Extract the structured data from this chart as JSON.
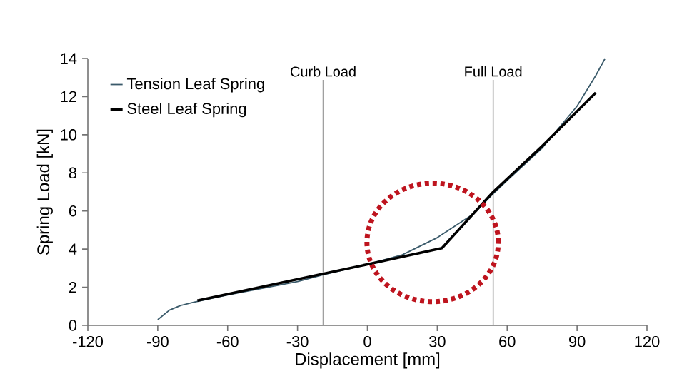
{
  "chart_data": {
    "type": "line",
    "xlabel": "Displacement [mm]",
    "ylabel": "Spring Load [kN]",
    "xlim": [
      -120,
      120
    ],
    "xticks": [
      -120,
      -90,
      -60,
      -30,
      0,
      30,
      60,
      90,
      120
    ],
    "ylim": [
      0,
      14
    ],
    "yticks": [
      0,
      2,
      4,
      6,
      8,
      10,
      12,
      14
    ],
    "legend": "top left",
    "series": [
      {
        "name": "Tension Leaf Spring",
        "color": "#3a5a6a",
        "x": [
          -90,
          -85,
          -80,
          -75,
          -60,
          -45,
          -30,
          -19,
          0,
          15,
          30,
          45,
          54,
          60,
          75,
          90,
          98,
          102
        ],
        "values": [
          0.3,
          0.8,
          1.05,
          1.2,
          1.6,
          1.95,
          2.3,
          2.65,
          3.2,
          3.7,
          4.6,
          5.8,
          6.9,
          7.6,
          9.3,
          11.5,
          13.1,
          14
        ]
      },
      {
        "name": "Steel Leaf Spring",
        "color": "#000000",
        "x": [
          -73,
          0,
          32,
          54,
          75,
          98
        ],
        "values": [
          1.3,
          3.2,
          4.05,
          7.0,
          9.4,
          12.2
        ]
      }
    ],
    "ref_lines": [
      {
        "axis": "x",
        "value": -19,
        "label": "Curb Load",
        "color": "#a0a0a0"
      },
      {
        "axis": "x",
        "value": 54,
        "label": "Full Load",
        "color": "#a0a0a0"
      }
    ]
  }
}
